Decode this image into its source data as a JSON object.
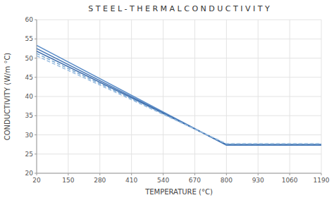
{
  "chart_data": {
    "type": "line",
    "title": "S T E E L  -  T H E R M A L  C O N D U C T I V I T Y",
    "x_label": "TEMPERATURE (°C)",
    "y_label": "CONDUCTIVITY (W/m °C)",
    "x": [
      20,
      800,
      1190
    ],
    "xlim": [
      20,
      1190
    ],
    "ylim": [
      20,
      60
    ],
    "xticks": [
      20,
      150,
      280,
      410,
      540,
      670,
      800,
      930,
      1060,
      1190
    ],
    "yticks": [
      20,
      25,
      30,
      35,
      40,
      45,
      50,
      55,
      60
    ],
    "grid": true,
    "series": [
      {
        "color": "#5b8dc8",
        "line_style": "solid",
        "values": [
          53.3,
          27.3,
          27.3
        ]
      },
      {
        "color": "#4a7ab8",
        "line_style": "solid",
        "values": [
          52.5,
          27.4,
          27.4
        ]
      },
      {
        "color": "#3a6aaa",
        "line_style": "solid",
        "values": [
          51.8,
          27.5,
          27.5
        ]
      },
      {
        "color": "#7aaad4",
        "line_style": "dashed",
        "values": [
          51.2,
          27.6,
          27.6
        ]
      },
      {
        "color": "#9bbde0",
        "line_style": "dashed",
        "values": [
          50.6,
          27.7,
          27.7
        ]
      }
    ]
  }
}
